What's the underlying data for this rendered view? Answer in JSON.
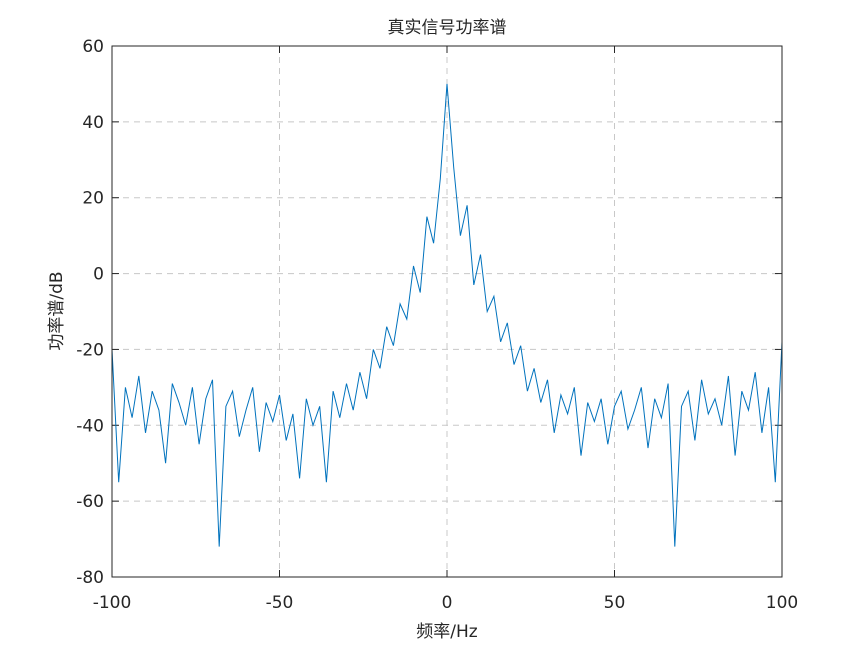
{
  "chart_data": {
    "type": "line",
    "title": "真实信号功率谱",
    "x_label": "频率/Hz",
    "y_label": "功率谱/dB",
    "x": [
      -100,
      -98,
      -96,
      -94,
      -92,
      -90,
      -88,
      -86,
      -84,
      -82,
      -80,
      -78,
      -76,
      -74,
      -72,
      -70,
      -68,
      -66,
      -64,
      -62,
      -60,
      -58,
      -56,
      -54,
      -52,
      -50,
      -48,
      -46,
      -44,
      -42,
      -40,
      -38,
      -36,
      -34,
      -32,
      -30,
      -28,
      -26,
      -24,
      -22,
      -20,
      -18,
      -16,
      -14,
      -12,
      -10,
      -8,
      -6,
      -4,
      -2,
      0,
      2,
      4,
      6,
      8,
      10,
      12,
      14,
      16,
      18,
      20,
      22,
      24,
      26,
      28,
      30,
      32,
      34,
      36,
      38,
      40,
      42,
      44,
      46,
      48,
      50,
      52,
      54,
      56,
      58,
      60,
      62,
      64,
      66,
      68,
      70,
      72,
      74,
      76,
      78,
      80,
      82,
      84,
      86,
      88,
      90,
      92,
      94,
      96,
      98,
      100
    ],
    "series": [
      {
        "name": "功率谱",
        "color": "#0072bd",
        "values": [
          -20,
          -55,
          -30,
          -38,
          -27,
          -42,
          -31,
          -36,
          -50,
          -29,
          -34,
          -40,
          -30,
          -45,
          -33,
          -28,
          -72,
          -35,
          -31,
          -43,
          -36,
          -30,
          -47,
          -34,
          -39,
          -32,
          -44,
          -37,
          -54,
          -33,
          -40,
          -35,
          -55,
          -31,
          -38,
          -29,
          -36,
          -26,
          -33,
          -20,
          -25,
          -14,
          -19,
          -8,
          -12,
          2,
          -5,
          15,
          8,
          25,
          50,
          28,
          10,
          18,
          -3,
          5,
          -10,
          -6,
          -18,
          -13,
          -24,
          -19,
          -31,
          -25,
          -34,
          -28,
          -42,
          -32,
          -37,
          -30,
          -48,
          -34,
          -39,
          -33,
          -45,
          -35,
          -31,
          -41,
          -36,
          -30,
          -46,
          -33,
          -38,
          -29,
          -72,
          -35,
          -31,
          -44,
          -28,
          -37,
          -33,
          -40,
          -27,
          -48,
          -31,
          -36,
          -26,
          -42,
          -30,
          -55,
          -18
        ]
      }
    ],
    "xlim": [
      -100,
      100
    ],
    "ylim": [
      -80,
      60
    ],
    "xticks": [
      -100,
      -50,
      0,
      50,
      100
    ],
    "yticks": [
      -80,
      -60,
      -40,
      -20,
      0,
      20,
      40,
      60
    ],
    "grid": true
  }
}
